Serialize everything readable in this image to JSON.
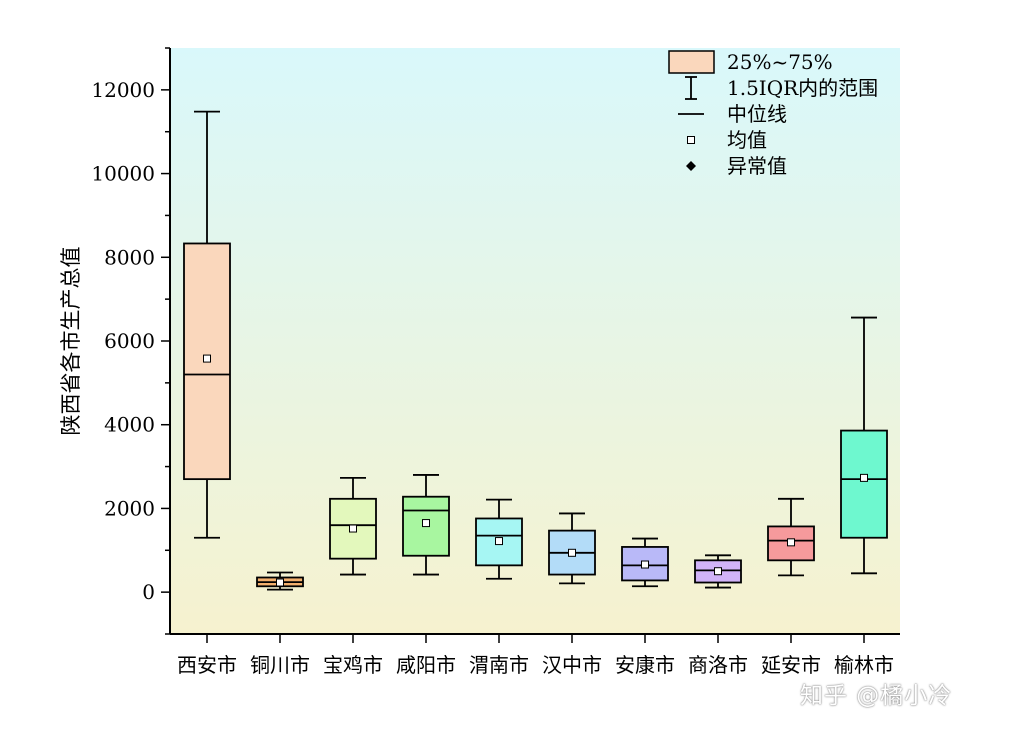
{
  "chart_data": {
    "type": "box",
    "ylabel": "陕西省各市生产总值",
    "xlabel": "",
    "ylim": [
      -1000,
      13000
    ],
    "yticks": [
      0,
      2000,
      4000,
      6000,
      8000,
      10000,
      12000
    ],
    "background": {
      "gradient_top": "#d9f8fb",
      "gradient_bottom": "#f6f2cf"
    },
    "legend": {
      "position": "top-right",
      "items": [
        {
          "kind": "box",
          "label": "25%~75%"
        },
        {
          "kind": "whisker",
          "label": "1.5IQR内的范围"
        },
        {
          "kind": "median",
          "label": "中位线"
        },
        {
          "kind": "mean",
          "label": "均值"
        },
        {
          "kind": "outlier",
          "label": "异常值"
        }
      ]
    },
    "categories": [
      "西安市",
      "铜川市",
      "宝鸡市",
      "咸阳市",
      "渭南市",
      "汉中市",
      "安康市",
      "商洛市",
      "延安市",
      "榆林市"
    ],
    "boxes": [
      {
        "name": "西安市",
        "color": "#fad7bc",
        "whisker_low": 1300,
        "q1": 2700,
        "median": 5200,
        "q3": 8330,
        "whisker_high": 11480,
        "mean": 5580
      },
      {
        "name": "铜川市",
        "color": "#f3b06e",
        "whisker_low": 60,
        "q1": 140,
        "median": 240,
        "q3": 350,
        "whisker_high": 470,
        "mean": 230
      },
      {
        "name": "宝鸡市",
        "color": "#e3f8bc",
        "whisker_low": 420,
        "q1": 800,
        "median": 1600,
        "q3": 2230,
        "whisker_high": 2730,
        "mean": 1520
      },
      {
        "name": "咸阳市",
        "color": "#a8f6a0",
        "whisker_low": 420,
        "q1": 870,
        "median": 1950,
        "q3": 2280,
        "whisker_high": 2800,
        "mean": 1650
      },
      {
        "name": "渭南市",
        "color": "#a6f6f3",
        "whisker_low": 320,
        "q1": 640,
        "median": 1350,
        "q3": 1760,
        "whisker_high": 2210,
        "mean": 1220
      },
      {
        "name": "汉中市",
        "color": "#b3dcf8",
        "whisker_low": 210,
        "q1": 420,
        "median": 940,
        "q3": 1470,
        "whisker_high": 1880,
        "mean": 940
      },
      {
        "name": "安康市",
        "color": "#b9b9f8",
        "whisker_low": 140,
        "q1": 280,
        "median": 640,
        "q3": 1080,
        "whisker_high": 1280,
        "mean": 660
      },
      {
        "name": "商洛市",
        "color": "#d1b3f8",
        "whisker_low": 110,
        "q1": 230,
        "median": 520,
        "q3": 760,
        "whisker_high": 880,
        "mean": 500
      },
      {
        "name": "延安市",
        "color": "#f69a9c",
        "whisker_low": 400,
        "q1": 760,
        "median": 1230,
        "q3": 1570,
        "whisker_high": 2230,
        "mean": 1190
      },
      {
        "name": "榆林市",
        "color": "#6ef8cf",
        "whisker_low": 450,
        "q1": 1300,
        "median": 2700,
        "q3": 3860,
        "whisker_high": 6560,
        "mean": 2730
      }
    ]
  },
  "watermark": "知乎 @橘小冷"
}
